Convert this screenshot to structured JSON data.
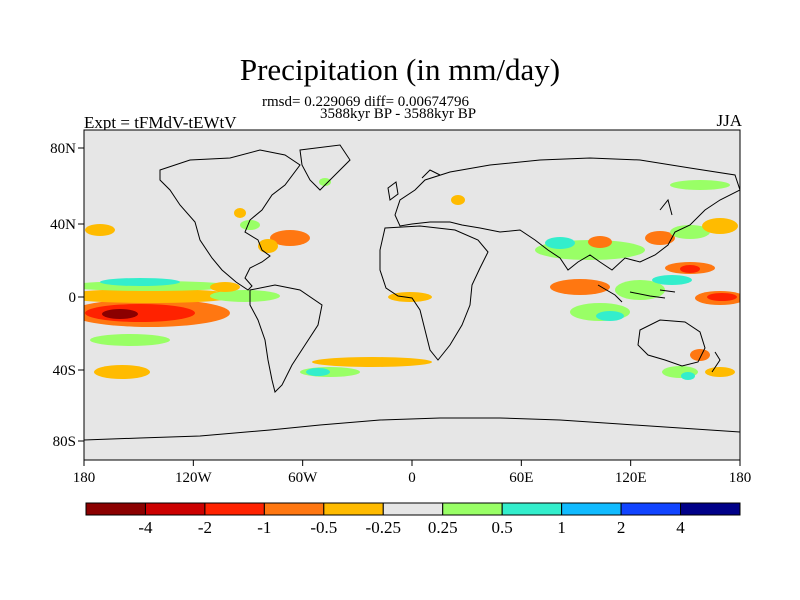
{
  "title": "Precipitation (in mm/day)",
  "stats_line": "rmsd= 0.229069 diff= 0.00674796",
  "period_line": "3588kyr BP - 3588kyr BP",
  "left_label": "Expt = tFMdV-tEWtV",
  "right_label": "JJA",
  "y_ticks": [
    "80N",
    "40N",
    "0",
    "40S",
    "80S"
  ],
  "x_ticks": [
    "180",
    "120W",
    "60W",
    "0",
    "60E",
    "120E",
    "180"
  ],
  "colorbar": {
    "tick_labels": [
      "-4",
      "-2",
      "-1",
      "-0.5",
      "-0.25",
      "0.25",
      "0.5",
      "1",
      "2",
      "4"
    ],
    "colors": [
      "#8b0000",
      "#cc0000",
      "#ff2200",
      "#ff7711",
      "#ffbb00",
      "#e6e6e6",
      "#99ff66",
      "#33eecc",
      "#11bbff",
      "#1144ff",
      "#000088"
    ]
  },
  "background_color": "#e6e6e6"
}
